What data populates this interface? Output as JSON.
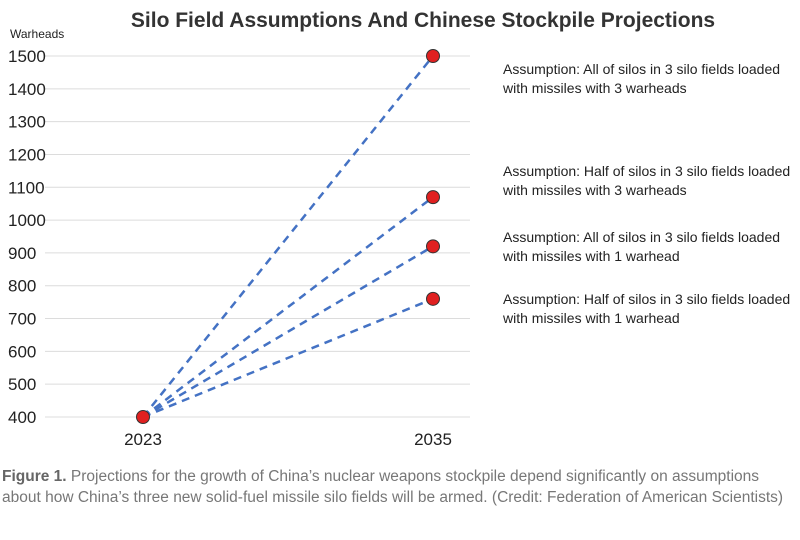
{
  "chart_data": {
    "type": "line",
    "title": "Silo Field Assumptions And Chinese Stockpile Projections",
    "ylabel": "Warheads",
    "xlabel": "",
    "categories": [
      "2023",
      "2035"
    ],
    "ylim": [
      400,
      1500
    ],
    "yticks": [
      400,
      500,
      600,
      700,
      800,
      900,
      1000,
      1100,
      1200,
      1300,
      1400,
      1500
    ],
    "grid": true,
    "line_style": "dashed",
    "line_color": "#4472C4",
    "marker_color": "#E02020",
    "series": [
      {
        "values": [
          400,
          1500
        ],
        "annotation": "Assumption: All of silos in 3 silo fields loaded with missiles with 3 warheads"
      },
      {
        "values": [
          400,
          1070
        ],
        "annotation": "Assumption: Half of silos in 3 silo fields loaded with missiles with 3 warheads"
      },
      {
        "values": [
          400,
          920
        ],
        "annotation": "Assumption: All of silos in 3 silo fields loaded with missiles with 1 warhead"
      },
      {
        "values": [
          400,
          760
        ],
        "annotation": "Assumption: Half of silos in 3 silo fields loaded with missiles with 1 warhead"
      }
    ]
  },
  "caption": {
    "label": "Figure 1.",
    "text": " Projections for the growth of China’s nuclear weapons stockpile depend significantly on assumptions about how China’s three new solid-fuel missile silo fields will be armed. (Credit: Federation of American Scientists)"
  }
}
